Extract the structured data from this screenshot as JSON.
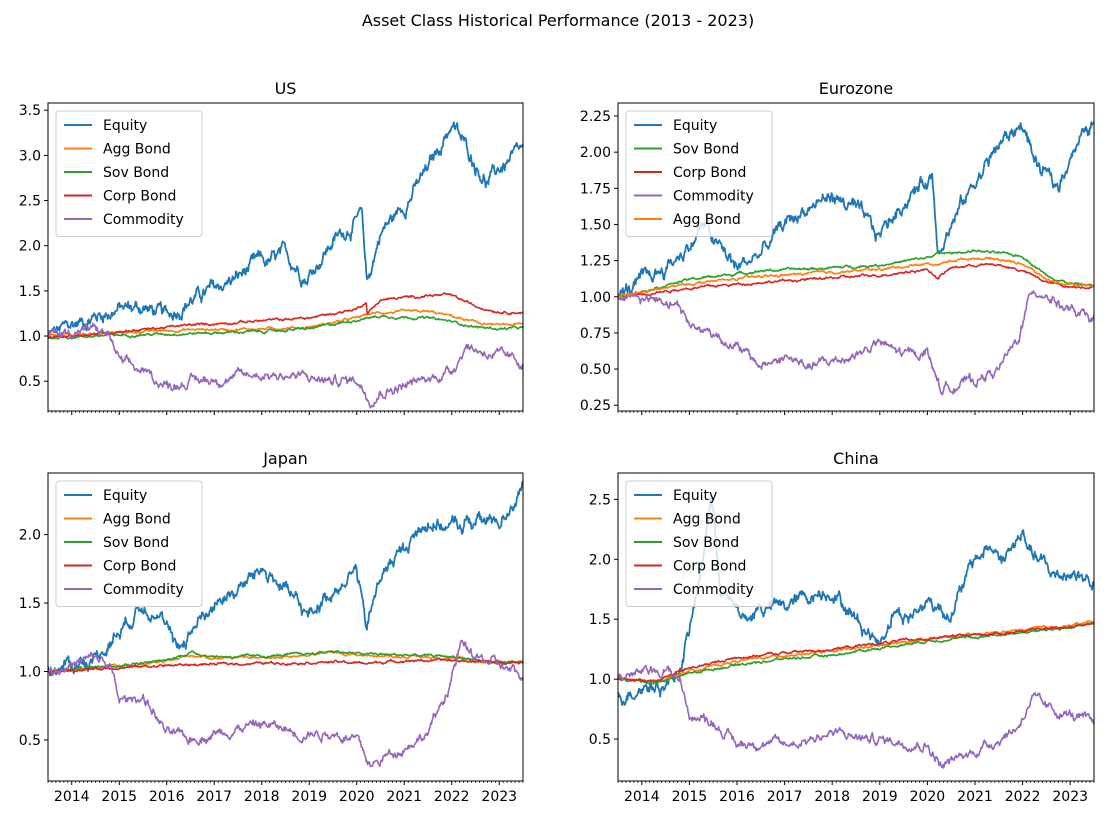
{
  "figure": {
    "suptitle": "Asset Class Historical Performance (2013 - 2023)"
  },
  "colors": {
    "Equity": "#1f77b4",
    "Agg Bond": "#ff7f0e",
    "Sov Bond": "#2ca02c",
    "Corp Bond": "#d62728",
    "Commodity": "#9467bd"
  },
  "chart_data": [
    {
      "type": "line",
      "title": "US",
      "xlabel": "",
      "ylabel": "",
      "xlim": [
        2013.5,
        2023.5
      ],
      "ylim": [
        0.17,
        3.58
      ],
      "xticks": [
        2014,
        2015,
        2016,
        2017,
        2018,
        2019,
        2020,
        2021,
        2022,
        2023
      ],
      "yticks": [
        0.5,
        1.0,
        1.5,
        2.0,
        2.5,
        3.0,
        3.5
      ],
      "ytick_labels": [
        "0.5",
        "1.0",
        "1.5",
        "2.0",
        "2.5",
        "3.0",
        "3.5"
      ],
      "show_xtick_labels": false,
      "legend": "upper-left",
      "grid": false,
      "series": [
        {
          "name": "Equity",
          "x": [
            2013.5,
            2014.0,
            2014.5,
            2015.0,
            2015.5,
            2016.0,
            2016.5,
            2017.0,
            2017.5,
            2018.0,
            2018.1,
            2018.5,
            2018.95,
            2019.5,
            2020.1,
            2020.22,
            2020.5,
            2021.0,
            2021.5,
            2022.0,
            2022.4,
            2022.75,
            2023.0,
            2023.5
          ],
          "y": [
            1.0,
            1.12,
            1.22,
            1.3,
            1.32,
            1.22,
            1.4,
            1.52,
            1.65,
            1.85,
            1.8,
            1.9,
            1.65,
            2.05,
            2.32,
            1.58,
            2.15,
            2.45,
            2.85,
            3.35,
            3.0,
            2.7,
            2.85,
            3.05
          ]
        },
        {
          "name": "Agg Bond",
          "x": [
            2013.5,
            2015.0,
            2016.5,
            2018.0,
            2019.0,
            2020.0,
            2020.22,
            2020.5,
            2021.5,
            2022.0,
            2022.5,
            2023.0,
            2023.5
          ],
          "y": [
            1.0,
            1.04,
            1.07,
            1.08,
            1.1,
            1.2,
            1.24,
            1.26,
            1.27,
            1.22,
            1.15,
            1.12,
            1.13
          ]
        },
        {
          "name": "Sov Bond",
          "x": [
            2013.5,
            2015.0,
            2016.5,
            2018.0,
            2019.0,
            2020.0,
            2020.22,
            2020.5,
            2021.5,
            2022.0,
            2022.5,
            2023.0,
            2023.5
          ],
          "y": [
            0.98,
            1.01,
            1.03,
            1.05,
            1.08,
            1.18,
            1.2,
            1.22,
            1.2,
            1.16,
            1.1,
            1.08,
            1.09
          ]
        },
        {
          "name": "Corp Bond",
          "x": [
            2013.5,
            2015.0,
            2016.5,
            2018.0,
            2019.0,
            2020.0,
            2020.2,
            2020.22,
            2020.5,
            2021.5,
            2022.0,
            2022.5,
            2023.0,
            2023.5
          ],
          "y": [
            0.98,
            1.05,
            1.12,
            1.17,
            1.2,
            1.3,
            1.38,
            1.25,
            1.4,
            1.45,
            1.45,
            1.33,
            1.27,
            1.26
          ]
        },
        {
          "name": "Commodity",
          "x": [
            2013.5,
            2014.0,
            2014.5,
            2014.8,
            2015.0,
            2015.5,
            2016.0,
            2016.5,
            2017.0,
            2018.0,
            2018.8,
            2019.5,
            2020.0,
            2020.3,
            2020.5,
            2021.0,
            2021.5,
            2022.0,
            2022.3,
            2022.5,
            2023.0,
            2023.5
          ],
          "y": [
            1.02,
            1.05,
            1.08,
            1.0,
            0.72,
            0.6,
            0.45,
            0.5,
            0.52,
            0.58,
            0.55,
            0.5,
            0.52,
            0.3,
            0.38,
            0.45,
            0.52,
            0.62,
            0.9,
            0.85,
            0.78,
            0.7
          ]
        }
      ]
    },
    {
      "type": "line",
      "title": "Eurozone",
      "xlabel": "",
      "ylabel": "",
      "xlim": [
        2013.5,
        2023.5
      ],
      "ylim": [
        0.21,
        2.34
      ],
      "xticks": [
        2014,
        2015,
        2016,
        2017,
        2018,
        2019,
        2020,
        2021,
        2022,
        2023
      ],
      "yticks": [
        0.25,
        0.5,
        0.75,
        1.0,
        1.25,
        1.5,
        1.75,
        2.0,
        2.25
      ],
      "ytick_labels": [
        "0.25",
        "0.50",
        "0.75",
        "1.00",
        "1.25",
        "1.50",
        "1.75",
        "2.00",
        "2.25"
      ],
      "show_xtick_labels": false,
      "legend": "upper-left",
      "grid": false,
      "series": [
        {
          "name": "Equity",
          "x": [
            2013.5,
            2014.0,
            2014.5,
            2015.0,
            2015.3,
            2015.6,
            2016.0,
            2016.5,
            2017.0,
            2017.5,
            2018.0,
            2018.5,
            2018.95,
            2019.5,
            2020.1,
            2020.22,
            2020.5,
            2021.0,
            2021.5,
            2022.0,
            2022.3,
            2022.75,
            2023.0,
            2023.5
          ],
          "y": [
            1.0,
            1.1,
            1.2,
            1.35,
            1.5,
            1.35,
            1.2,
            1.3,
            1.5,
            1.62,
            1.7,
            1.6,
            1.42,
            1.65,
            1.85,
            1.35,
            1.5,
            1.8,
            2.05,
            2.2,
            1.9,
            1.75,
            2.0,
            2.2
          ]
        },
        {
          "name": "Sov Bond",
          "x": [
            2013.5,
            2015.0,
            2016.5,
            2018.0,
            2019.0,
            2020.0,
            2020.22,
            2020.5,
            2021.0,
            2021.5,
            2022.0,
            2022.5,
            2023.0,
            2023.5
          ],
          "y": [
            1.0,
            1.12,
            1.18,
            1.2,
            1.22,
            1.27,
            1.3,
            1.3,
            1.32,
            1.3,
            1.28,
            1.15,
            1.09,
            1.08
          ]
        },
        {
          "name": "Corp Bond",
          "x": [
            2013.5,
            2015.0,
            2016.5,
            2018.0,
            2019.0,
            2020.0,
            2020.22,
            2020.5,
            2021.0,
            2021.5,
            2022.0,
            2022.5,
            2023.0,
            2023.5
          ],
          "y": [
            1.0,
            1.06,
            1.1,
            1.13,
            1.15,
            1.19,
            1.13,
            1.2,
            1.22,
            1.22,
            1.18,
            1.1,
            1.07,
            1.07
          ]
        },
        {
          "name": "Commodity",
          "x": [
            2013.5,
            2014.0,
            2014.5,
            2014.8,
            2015.0,
            2015.5,
            2016.0,
            2016.5,
            2017.0,
            2017.5,
            2018.0,
            2018.5,
            2019.0,
            2019.5,
            2020.0,
            2020.3,
            2020.6,
            2021.0,
            2021.5,
            2021.9,
            2022.2,
            2022.5,
            2023.0,
            2023.5
          ],
          "y": [
            1.02,
            1.0,
            0.98,
            0.95,
            0.8,
            0.75,
            0.65,
            0.52,
            0.58,
            0.52,
            0.55,
            0.6,
            0.68,
            0.6,
            0.62,
            0.35,
            0.4,
            0.42,
            0.5,
            0.7,
            1.05,
            1.02,
            0.9,
            0.83
          ]
        },
        {
          "name": "Agg Bond",
          "x": [
            2013.5,
            2015.0,
            2016.5,
            2018.0,
            2019.0,
            2020.0,
            2020.22,
            2020.5,
            2021.0,
            2021.5,
            2022.0,
            2022.5,
            2023.0,
            2023.5
          ],
          "y": [
            1.0,
            1.09,
            1.14,
            1.17,
            1.19,
            1.23,
            1.22,
            1.25,
            1.27,
            1.26,
            1.23,
            1.12,
            1.08,
            1.08
          ]
        }
      ]
    },
    {
      "type": "line",
      "title": "Japan",
      "xlabel": "",
      "ylabel": "",
      "xlim": [
        2013.5,
        2023.5
      ],
      "ylim": [
        0.2,
        2.45
      ],
      "xticks": [
        2014,
        2015,
        2016,
        2017,
        2018,
        2019,
        2020,
        2021,
        2022,
        2023
      ],
      "yticks": [
        0.5,
        1.0,
        1.5,
        2.0
      ],
      "ytick_labels": [
        "0.5",
        "1.0",
        "1.5",
        "2.0"
      ],
      "show_xtick_labels": true,
      "legend": "upper-left",
      "grid": false,
      "series": [
        {
          "name": "Equity",
          "x": [
            2013.5,
            2014.0,
            2014.5,
            2015.0,
            2015.5,
            2015.8,
            2016.2,
            2016.5,
            2017.0,
            2017.5,
            2018.0,
            2018.5,
            2018.95,
            2019.5,
            2020.0,
            2020.2,
            2020.5,
            2021.0,
            2021.5,
            2022.0,
            2022.5,
            2023.0,
            2023.5
          ],
          "y": [
            1.0,
            1.05,
            1.1,
            1.3,
            1.5,
            1.45,
            1.15,
            1.3,
            1.5,
            1.6,
            1.75,
            1.6,
            1.4,
            1.6,
            1.75,
            1.3,
            1.7,
            1.9,
            2.1,
            2.05,
            2.1,
            2.1,
            2.35
          ]
        },
        {
          "name": "Agg Bond",
          "x": [
            2013.5,
            2015.0,
            2016.0,
            2016.5,
            2017.0,
            2018.0,
            2019.0,
            2019.5,
            2020.0,
            2021.0,
            2022.0,
            2023.0,
            2023.5
          ],
          "y": [
            1.0,
            1.04,
            1.07,
            1.12,
            1.1,
            1.1,
            1.12,
            1.14,
            1.12,
            1.11,
            1.1,
            1.06,
            1.07
          ]
        },
        {
          "name": "Sov Bond",
          "x": [
            2013.5,
            2015.0,
            2016.0,
            2016.5,
            2017.0,
            2018.0,
            2019.0,
            2019.5,
            2020.0,
            2021.0,
            2022.0,
            2023.0,
            2023.5
          ],
          "y": [
            1.0,
            1.05,
            1.08,
            1.14,
            1.11,
            1.11,
            1.13,
            1.15,
            1.13,
            1.12,
            1.11,
            1.06,
            1.06
          ]
        },
        {
          "name": "Corp Bond",
          "x": [
            2013.5,
            2015.0,
            2016.5,
            2018.0,
            2019.5,
            2020.2,
            2021.0,
            2022.0,
            2023.0,
            2023.5
          ],
          "y": [
            1.0,
            1.03,
            1.05,
            1.06,
            1.07,
            1.06,
            1.08,
            1.08,
            1.07,
            1.07
          ]
        },
        {
          "name": "Commodity",
          "x": [
            2013.5,
            2014.0,
            2014.5,
            2014.8,
            2015.0,
            2015.5,
            2016.0,
            2016.5,
            2017.0,
            2018.0,
            2018.8,
            2019.5,
            2020.0,
            2020.3,
            2020.6,
            2021.0,
            2021.5,
            2021.9,
            2022.2,
            2022.5,
            2023.0,
            2023.5
          ],
          "y": [
            1.0,
            1.05,
            1.1,
            1.05,
            0.78,
            0.82,
            0.55,
            0.5,
            0.55,
            0.62,
            0.55,
            0.55,
            0.5,
            0.3,
            0.38,
            0.45,
            0.55,
            0.85,
            1.2,
            1.1,
            1.05,
            0.95
          ]
        }
      ]
    },
    {
      "type": "line",
      "title": "China",
      "xlabel": "",
      "ylabel": "",
      "xlim": [
        2013.5,
        2023.5
      ],
      "ylim": [
        0.15,
        2.72
      ],
      "xticks": [
        2014,
        2015,
        2016,
        2017,
        2018,
        2019,
        2020,
        2021,
        2022,
        2023
      ],
      "yticks": [
        0.5,
        1.0,
        1.5,
        2.0,
        2.5
      ],
      "ytick_labels": [
        "0.5",
        "1.0",
        "1.5",
        "2.0",
        "2.5"
      ],
      "show_xtick_labels": true,
      "legend": "upper-left",
      "grid": false,
      "series": [
        {
          "name": "Equity",
          "x": [
            2013.5,
            2014.0,
            2014.5,
            2014.8,
            2015.0,
            2015.25,
            2015.45,
            2015.65,
            2015.9,
            2016.2,
            2016.5,
            2017.0,
            2017.5,
            2018.0,
            2018.5,
            2019.0,
            2019.3,
            2019.6,
            2020.0,
            2020.5,
            2021.0,
            2021.3,
            2021.6,
            2022.0,
            2022.3,
            2022.7,
            2023.0,
            2023.5
          ],
          "y": [
            0.85,
            0.95,
            0.95,
            1.1,
            1.4,
            1.9,
            2.55,
            1.8,
            1.6,
            1.5,
            1.6,
            1.6,
            1.7,
            1.75,
            1.5,
            1.3,
            1.6,
            1.5,
            1.65,
            1.55,
            2.0,
            2.1,
            2.0,
            2.2,
            2.0,
            1.85,
            1.9,
            1.8
          ]
        },
        {
          "name": "Agg Bond",
          "x": [
            2013.5,
            2014.3,
            2015.0,
            2016.0,
            2017.0,
            2018.0,
            2019.0,
            2020.0,
            2021.0,
            2022.0,
            2023.0,
            2023.5
          ],
          "y": [
            1.0,
            0.98,
            1.07,
            1.15,
            1.2,
            1.23,
            1.28,
            1.33,
            1.37,
            1.41,
            1.45,
            1.48
          ]
        },
        {
          "name": "Sov Bond",
          "x": [
            2013.5,
            2014.3,
            2015.0,
            2016.0,
            2017.0,
            2018.0,
            2019.0,
            2020.0,
            2021.0,
            2022.0,
            2023.0,
            2023.5
          ],
          "y": [
            1.0,
            0.97,
            1.05,
            1.12,
            1.17,
            1.2,
            1.26,
            1.32,
            1.35,
            1.39,
            1.43,
            1.46
          ]
        },
        {
          "name": "Corp Bond",
          "x": [
            2013.5,
            2014.3,
            2015.0,
            2016.0,
            2017.0,
            2018.0,
            2019.0,
            2020.0,
            2021.0,
            2022.0,
            2023.0,
            2023.5
          ],
          "y": [
            1.0,
            0.99,
            1.09,
            1.18,
            1.22,
            1.25,
            1.3,
            1.34,
            1.37,
            1.4,
            1.44,
            1.47
          ]
        },
        {
          "name": "Commodity",
          "x": [
            2013.5,
            2014.0,
            2014.5,
            2014.8,
            2015.0,
            2015.5,
            2016.0,
            2016.5,
            2017.0,
            2018.0,
            2018.8,
            2019.5,
            2020.0,
            2020.3,
            2020.6,
            2021.0,
            2021.5,
            2021.9,
            2022.2,
            2022.5,
            2023.0,
            2023.5
          ],
          "y": [
            1.02,
            1.05,
            1.08,
            1.0,
            0.7,
            0.65,
            0.45,
            0.48,
            0.45,
            0.55,
            0.5,
            0.48,
            0.45,
            0.27,
            0.33,
            0.4,
            0.5,
            0.6,
            0.85,
            0.75,
            0.7,
            0.62
          ]
        }
      ]
    }
  ]
}
